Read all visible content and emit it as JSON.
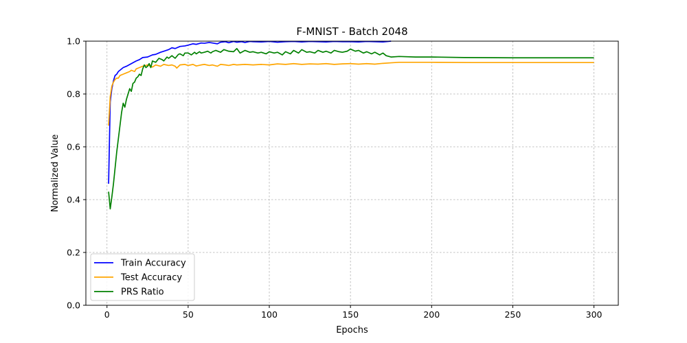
{
  "chart_data": {
    "type": "line",
    "title": "F-MNIST - Batch 2048",
    "xlabel": "Epochs",
    "ylabel": "Normalized Value",
    "xlim": [
      -13,
      315
    ],
    "ylim": [
      0.0,
      1.0
    ],
    "xticks": [
      0,
      50,
      100,
      150,
      200,
      250,
      300
    ],
    "yticks": [
      0.0,
      0.2,
      0.4,
      0.6,
      0.8,
      1.0
    ],
    "xtick_labels": [
      "0",
      "50",
      "100",
      "150",
      "200",
      "250",
      "300"
    ],
    "ytick_labels": [
      "0.0",
      "0.2",
      "0.4",
      "0.6",
      "0.8",
      "1.0"
    ],
    "grid": true,
    "legend_position": "lower-left",
    "series": [
      {
        "name": "Train Accuracy",
        "color": "#0000ff",
        "x": [
          1,
          2,
          3,
          4,
          5,
          6,
          7,
          8,
          10,
          12,
          15,
          18,
          20,
          22,
          25,
          28,
          30,
          33,
          35,
          38,
          40,
          42,
          45,
          48,
          50,
          53,
          55,
          58,
          60,
          63,
          65,
          68,
          70,
          73,
          75,
          78,
          80,
          83,
          85,
          88,
          90,
          95,
          100,
          105,
          110,
          115,
          120,
          125,
          130,
          135,
          140,
          145,
          150,
          155,
          160,
          165,
          170,
          175
        ],
        "y": [
          0.46,
          0.77,
          0.82,
          0.85,
          0.87,
          0.875,
          0.885,
          0.89,
          0.9,
          0.905,
          0.915,
          0.925,
          0.93,
          0.938,
          0.94,
          0.948,
          0.95,
          0.958,
          0.962,
          0.968,
          0.975,
          0.972,
          0.98,
          0.982,
          0.985,
          0.99,
          0.988,
          0.993,
          0.992,
          0.995,
          0.993,
          0.99,
          0.996,
          0.998,
          0.994,
          0.999,
          0.996,
          0.998,
          0.995,
          0.999,
          0.998,
          0.997,
          0.999,
          0.996,
          0.998,
          0.999,
          0.997,
          0.999,
          0.998,
          0.997,
          0.999,
          0.998,
          0.998,
          0.997,
          0.999,
          0.998,
          0.997,
          1.0
        ]
      },
      {
        "name": "Test Accuracy",
        "color": "#ffa500",
        "x": [
          1,
          2,
          3,
          4,
          5,
          6,
          7,
          8,
          10,
          12,
          14,
          15,
          17,
          18,
          20,
          22,
          25,
          28,
          30,
          33,
          35,
          38,
          40,
          42,
          43,
          45,
          48,
          50,
          53,
          55,
          58,
          60,
          63,
          65,
          68,
          70,
          73,
          75,
          78,
          80,
          85,
          90,
          95,
          100,
          105,
          110,
          115,
          120,
          125,
          130,
          135,
          140,
          145,
          150,
          155,
          160,
          165,
          170,
          175,
          180,
          200,
          225,
          250,
          275,
          300
        ],
        "y": [
          0.68,
          0.79,
          0.83,
          0.845,
          0.855,
          0.86,
          0.86,
          0.87,
          0.875,
          0.88,
          0.885,
          0.89,
          0.885,
          0.895,
          0.9,
          0.905,
          0.91,
          0.902,
          0.91,
          0.905,
          0.912,
          0.908,
          0.91,
          0.905,
          0.898,
          0.91,
          0.912,
          0.908,
          0.912,
          0.906,
          0.91,
          0.912,
          0.908,
          0.91,
          0.905,
          0.912,
          0.91,
          0.908,
          0.912,
          0.91,
          0.912,
          0.91,
          0.912,
          0.91,
          0.914,
          0.912,
          0.915,
          0.912,
          0.914,
          0.913,
          0.915,
          0.912,
          0.914,
          0.915,
          0.913,
          0.915,
          0.913,
          0.916,
          0.918,
          0.92,
          0.92,
          0.919,
          0.919,
          0.919,
          0.919
        ]
      },
      {
        "name": "PRS Ratio",
        "color": "#008000",
        "x": [
          1,
          2,
          3,
          4,
          5,
          6,
          7,
          8,
          9,
          10,
          11,
          12,
          13,
          14,
          15,
          16,
          17,
          18,
          19,
          20,
          21,
          22,
          23,
          24,
          25,
          26,
          27,
          28,
          30,
          32,
          34,
          35,
          37,
          38,
          40,
          42,
          44,
          45,
          47,
          48,
          50,
          52,
          54,
          55,
          57,
          58,
          60,
          62,
          64,
          65,
          67,
          70,
          72,
          75,
          78,
          80,
          82,
          85,
          88,
          90,
          93,
          95,
          98,
          100,
          103,
          105,
          108,
          110,
          113,
          115,
          118,
          120,
          123,
          125,
          128,
          130,
          133,
          135,
          138,
          140,
          143,
          145,
          148,
          150,
          153,
          155,
          158,
          160,
          163,
          165,
          168,
          170,
          172,
          175,
          180,
          190,
          200,
          220,
          250,
          280,
          300
        ],
        "y": [
          0.43,
          0.365,
          0.41,
          0.46,
          0.52,
          0.58,
          0.63,
          0.68,
          0.73,
          0.765,
          0.75,
          0.78,
          0.8,
          0.82,
          0.81,
          0.84,
          0.845,
          0.86,
          0.865,
          0.875,
          0.87,
          0.895,
          0.91,
          0.9,
          0.905,
          0.915,
          0.9,
          0.925,
          0.92,
          0.935,
          0.93,
          0.925,
          0.94,
          0.935,
          0.945,
          0.935,
          0.95,
          0.952,
          0.945,
          0.955,
          0.955,
          0.948,
          0.958,
          0.952,
          0.96,
          0.955,
          0.958,
          0.962,
          0.955,
          0.96,
          0.965,
          0.958,
          0.968,
          0.962,
          0.96,
          0.972,
          0.955,
          0.965,
          0.958,
          0.96,
          0.955,
          0.958,
          0.952,
          0.96,
          0.955,
          0.958,
          0.948,
          0.96,
          0.952,
          0.965,
          0.955,
          0.968,
          0.958,
          0.96,
          0.955,
          0.965,
          0.958,
          0.962,
          0.955,
          0.965,
          0.96,
          0.958,
          0.962,
          0.97,
          0.962,
          0.965,
          0.955,
          0.96,
          0.952,
          0.958,
          0.948,
          0.955,
          0.945,
          0.94,
          0.942,
          0.94,
          0.94,
          0.938,
          0.937,
          0.937,
          0.937
        ]
      }
    ]
  }
}
